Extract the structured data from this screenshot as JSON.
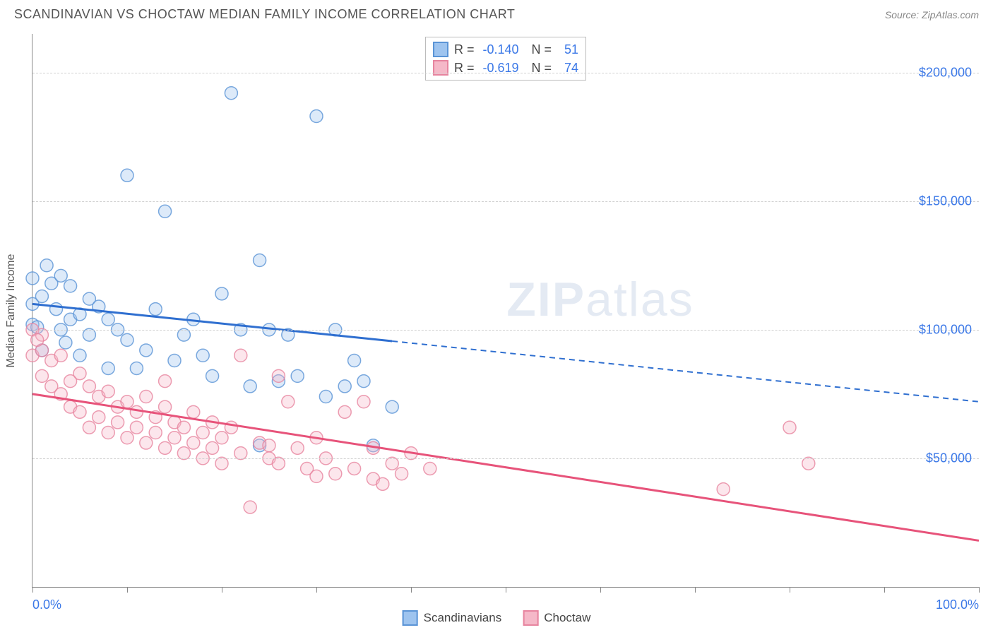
{
  "title": "SCANDINAVIAN VS CHOCTAW MEDIAN FAMILY INCOME CORRELATION CHART",
  "source": "Source: ZipAtlas.com",
  "ylabel": "Median Family Income",
  "watermark_bold": "ZIP",
  "watermark_rest": "atlas",
  "chart": {
    "type": "scatter",
    "xlim": [
      0,
      100
    ],
    "ylim": [
      0,
      215000
    ],
    "xticks": [
      0,
      10,
      20,
      30,
      40,
      50,
      60,
      70,
      80,
      90,
      100
    ],
    "xtick_labels_shown": {
      "0": "0.0%",
      "100": "100.0%"
    },
    "yticks": [
      50000,
      100000,
      150000,
      200000
    ],
    "ytick_labels": [
      "$50,000",
      "$100,000",
      "$150,000",
      "$200,000"
    ],
    "background_color": "#ffffff",
    "grid_color": "#d0d0d0",
    "axis_color": "#888888",
    "tick_label_color": "#3b78e7",
    "marker_radius": 9,
    "marker_opacity": 0.35,
    "marker_stroke_opacity": 0.8,
    "series": [
      {
        "name": "Scandinavians",
        "fill": "#9ec4ef",
        "stroke": "#5a94d6",
        "line_color": "#2f6fd0",
        "R": "-0.140",
        "N": "51",
        "trend": {
          "y_at_x0": 110000,
          "y_at_x100": 72000,
          "solid_until_x": 38
        },
        "points": [
          [
            0,
            120000
          ],
          [
            0,
            110000
          ],
          [
            0,
            102000
          ],
          [
            0.5,
            101000
          ],
          [
            1,
            113000
          ],
          [
            1,
            92000
          ],
          [
            2,
            118000
          ],
          [
            2.5,
            108000
          ],
          [
            3,
            121000
          ],
          [
            3,
            100000
          ],
          [
            3.5,
            95000
          ],
          [
            4,
            117000
          ],
          [
            4,
            104000
          ],
          [
            5,
            106000
          ],
          [
            5,
            90000
          ],
          [
            6,
            112000
          ],
          [
            6,
            98000
          ],
          [
            7,
            109000
          ],
          [
            8,
            104000
          ],
          [
            8,
            85000
          ],
          [
            9,
            100000
          ],
          [
            10,
            96000
          ],
          [
            10,
            160000
          ],
          [
            11,
            85000
          ],
          [
            12,
            92000
          ],
          [
            13,
            108000
          ],
          [
            14,
            146000
          ],
          [
            15,
            88000
          ],
          [
            16,
            98000
          ],
          [
            17,
            104000
          ],
          [
            18,
            90000
          ],
          [
            19,
            82000
          ],
          [
            20,
            114000
          ],
          [
            21,
            192000
          ],
          [
            22,
            100000
          ],
          [
            23,
            78000
          ],
          [
            24,
            127000
          ],
          [
            25,
            100000
          ],
          [
            26,
            80000
          ],
          [
            27,
            98000
          ],
          [
            28,
            82000
          ],
          [
            30,
            183000
          ],
          [
            31,
            74000
          ],
          [
            32,
            100000
          ],
          [
            33,
            78000
          ],
          [
            34,
            88000
          ],
          [
            35,
            80000
          ],
          [
            36,
            55000
          ],
          [
            38,
            70000
          ],
          [
            24,
            55000
          ],
          [
            1.5,
            125000
          ]
        ]
      },
      {
        "name": "Choctaw",
        "fill": "#f5b8c8",
        "stroke": "#e7849f",
        "line_color": "#e7537a",
        "R": "-0.619",
        "N": "74",
        "trend": {
          "y_at_x0": 75000,
          "y_at_x100": 18000,
          "solid_until_x": 100
        },
        "points": [
          [
            0,
            100000
          ],
          [
            0,
            90000
          ],
          [
            1,
            92000
          ],
          [
            1,
            82000
          ],
          [
            2,
            88000
          ],
          [
            2,
            78000
          ],
          [
            3,
            90000
          ],
          [
            3,
            75000
          ],
          [
            4,
            80000
          ],
          [
            4,
            70000
          ],
          [
            5,
            83000
          ],
          [
            5,
            68000
          ],
          [
            6,
            78000
          ],
          [
            6,
            62000
          ],
          [
            7,
            74000
          ],
          [
            7,
            66000
          ],
          [
            8,
            76000
          ],
          [
            8,
            60000
          ],
          [
            9,
            70000
          ],
          [
            9,
            64000
          ],
          [
            10,
            72000
          ],
          [
            10,
            58000
          ],
          [
            11,
            68000
          ],
          [
            11,
            62000
          ],
          [
            12,
            74000
          ],
          [
            12,
            56000
          ],
          [
            13,
            66000
          ],
          [
            13,
            60000
          ],
          [
            14,
            70000
          ],
          [
            14,
            54000
          ],
          [
            15,
            64000
          ],
          [
            15,
            58000
          ],
          [
            16,
            62000
          ],
          [
            16,
            52000
          ],
          [
            17,
            68000
          ],
          [
            17,
            56000
          ],
          [
            18,
            60000
          ],
          [
            18,
            50000
          ],
          [
            19,
            64000
          ],
          [
            19,
            54000
          ],
          [
            20,
            58000
          ],
          [
            20,
            48000
          ],
          [
            21,
            62000
          ],
          [
            22,
            52000
          ],
          [
            23,
            31000
          ],
          [
            24,
            56000
          ],
          [
            25,
            50000
          ],
          [
            26,
            48000
          ],
          [
            27,
            72000
          ],
          [
            28,
            54000
          ],
          [
            29,
            46000
          ],
          [
            30,
            58000
          ],
          [
            31,
            50000
          ],
          [
            32,
            44000
          ],
          [
            33,
            68000
          ],
          [
            34,
            46000
          ],
          [
            35,
            72000
          ],
          [
            36,
            42000
          ],
          [
            36,
            54000
          ],
          [
            37,
            40000
          ],
          [
            38,
            48000
          ],
          [
            39,
            44000
          ],
          [
            40,
            52000
          ],
          [
            42,
            46000
          ],
          [
            73,
            38000
          ],
          [
            80,
            62000
          ],
          [
            82,
            48000
          ],
          [
            1,
            98000
          ],
          [
            0.5,
            96000
          ],
          [
            14,
            80000
          ],
          [
            22,
            90000
          ],
          [
            26,
            82000
          ],
          [
            25,
            55000
          ],
          [
            30,
            43000
          ]
        ]
      }
    ]
  },
  "legend": {
    "items": [
      {
        "label": "Scandinavians",
        "fill": "#9ec4ef",
        "stroke": "#5a94d6"
      },
      {
        "label": "Choctaw",
        "fill": "#f5b8c8",
        "stroke": "#e7849f"
      }
    ]
  }
}
